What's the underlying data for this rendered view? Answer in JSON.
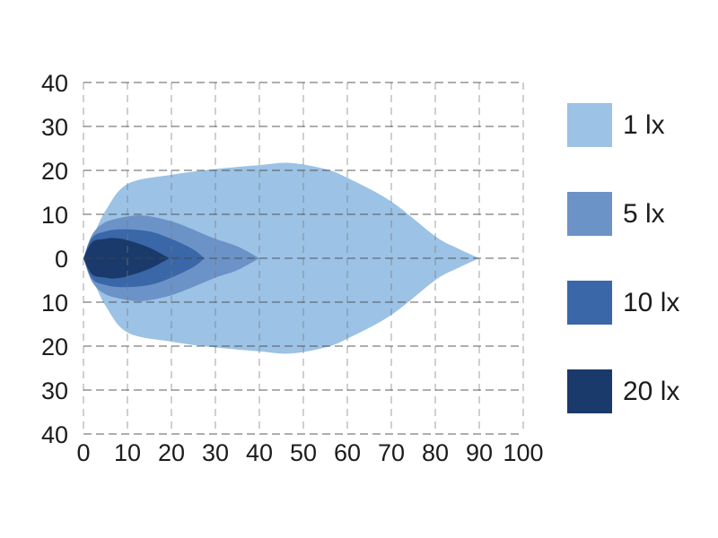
{
  "chart_data": {
    "type": "area",
    "chart_kind": "isolux-light-distribution",
    "title": "",
    "xlabel": "",
    "ylabel": "",
    "xlim": [
      0,
      100
    ],
    "ylim": [
      -40,
      40
    ],
    "grid": "dashed",
    "legend_position": "right",
    "x_ticks": {
      "values": [
        0,
        10,
        20,
        30,
        40,
        50,
        60,
        70,
        80,
        90,
        100
      ],
      "labels": [
        "0",
        "10",
        "20",
        "30",
        "40",
        "50",
        "60",
        "70",
        "80",
        "90",
        "100"
      ]
    },
    "y_ticks": {
      "values": [
        40,
        30,
        20,
        10,
        0,
        -10,
        -20,
        -30,
        -40
      ],
      "labels": [
        "40",
        "30",
        "20",
        "10",
        "0",
        "10",
        "20",
        "30",
        "40"
      ]
    },
    "series": [
      {
        "name": "1 lx",
        "color": "#9CC2E5",
        "symmetric_about_y0": true,
        "points": [
          [
            0,
            0
          ],
          [
            2,
            4.5
          ],
          [
            5,
            10.8
          ],
          [
            10,
            16.9
          ],
          [
            20,
            19.0
          ],
          [
            30,
            20.3
          ],
          [
            40,
            21.2
          ],
          [
            47,
            21.7
          ],
          [
            55,
            20.3
          ],
          [
            60,
            18.3
          ],
          [
            70,
            12.9
          ],
          [
            80,
            5.0
          ],
          [
            85,
            2.3
          ],
          [
            90,
            0
          ]
        ]
      },
      {
        "name": "5 lx",
        "color": "#6C93C7",
        "symmetric_about_y0": true,
        "points": [
          [
            0,
            0
          ],
          [
            2,
            5.4
          ],
          [
            5,
            8.2
          ],
          [
            10,
            9.5
          ],
          [
            14,
            9.7
          ],
          [
            20,
            8.4
          ],
          [
            25,
            6.5
          ],
          [
            30,
            4.4
          ],
          [
            35,
            2.7
          ],
          [
            40,
            0
          ]
        ]
      },
      {
        "name": "10 lx",
        "color": "#3A67A8",
        "symmetric_about_y0": true,
        "points": [
          [
            0,
            0
          ],
          [
            2,
            4.7
          ],
          [
            5,
            6.1
          ],
          [
            9,
            6.6
          ],
          [
            15,
            6.1
          ],
          [
            20,
            4.4
          ],
          [
            25,
            2.0
          ],
          [
            27.5,
            0
          ]
        ]
      },
      {
        "name": "20 lx",
        "color": "#1A3A6B",
        "symmetric_about_y0": true,
        "points": [
          [
            0,
            0
          ],
          [
            2,
            3.7
          ],
          [
            5,
            4.4
          ],
          [
            7,
            4.6
          ],
          [
            10,
            4.1
          ],
          [
            15,
            2.4
          ],
          [
            19.5,
            0
          ]
        ]
      }
    ]
  },
  "legend": {
    "items": [
      {
        "label": "1 lx",
        "color": "#9CC2E5"
      },
      {
        "label": "5 lx",
        "color": "#6C93C7"
      },
      {
        "label": "10 lx",
        "color": "#3A67A8"
      },
      {
        "label": "20 lx",
        "color": "#1A3A6B"
      }
    ]
  },
  "colors": {
    "background": "#ffffff",
    "grid_horizontal": "rgba(70,70,70,0.58)",
    "grid_vertical": "rgba(120,120,120,0.5)",
    "tick_text": "#1c1c1c"
  }
}
